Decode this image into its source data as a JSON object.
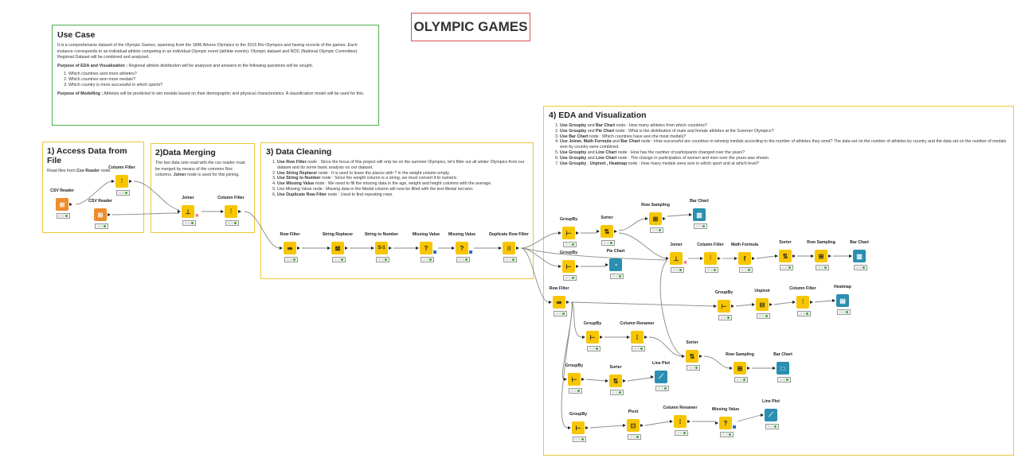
{
  "title": "OLYMPIC GAMES",
  "use_case": {
    "heading": "Use Case",
    "intro": "It is a comprehensive dataset of the Olympic Games, spanning from the 1896 Athens Olympics to the 2016 Rio Olympics and having records of the games. Each instance corresponds to an individual athlete competing in an individual Olympic event (athlete events). Olympic dataset and NOC (National Olympic Committee) Regional Dataset will be combined and analyzed.",
    "eda_label": "Purpose of EDA and Visualization :",
    "eda_text": "Regional athlete distribution will be analyzed and answers to the following questions will be sought.",
    "questions": [
      "Which countries sent more athletes?",
      "Which countries won more medals?",
      "Which country is more successful in which sports?"
    ],
    "model_label": "Purpose of Modelling :",
    "model_text": "Athletes will be predicted to win medals based on their demographic and physical characteristics. A classification model will be used for this."
  },
  "access": {
    "heading": "1) Access Data from File",
    "text_prefix": "Read files from ",
    "text_bold": "Csv Reader",
    "text_suffix": " node"
  },
  "merging": {
    "heading": "2)Data Merging",
    "text_a": "The two data sets read with the csv reader must be merged by means of the common Noc columns. ",
    "text_bold": "Joiner",
    "text_b": " node is used for this joining."
  },
  "cleaning": {
    "heading": "3) Data Cleaning",
    "items": [
      {
        "b": "Use Row Filter",
        "t": " node : Since the focus of this project will only be on the summer Olympics, let's filter out all winter Olympics from our dataset and do some basic analysis on our dataset."
      },
      {
        "b": "Use String Replacer",
        "t": " node : It is used to leave the places with ? in the weight column empty."
      },
      {
        "b": "Use String to Number",
        "t": " node : Since the weight column is a string, we must convert it to numeric."
      },
      {
        "b": "Use Missing Value",
        "t": " node : We need to fill the missing data in the age, weight and height columns with the average."
      },
      {
        "b": "",
        "t": "Use Missing Value node : Missing data in the Medal column will now be filled with the text  Medal not won."
      },
      {
        "b": "Use Duplicate Row Filter",
        "t": " node : Used to find repeating rows."
      }
    ]
  },
  "eda": {
    "heading": "4) EDA and Visualization",
    "items": [
      {
        "b": "Use Groupby",
        "m": " and ",
        "b2": "Bar Chart",
        "t": " node : How many athletes from which countries?"
      },
      {
        "b": "Use Groupby",
        "m": " and ",
        "b2": "Pie Chart",
        "t": " node : What is the distribution of male and female athletes at the Summer Olympics?"
      },
      {
        "b": "Use Bar Chart",
        "m": "",
        "b2": "",
        "t": " node : Which countries have won the most medals?"
      },
      {
        "b": "Use Joiner, Math Formula",
        "m": " and ",
        "b2": "Bar Chart",
        "t": " node : How successful are countries in winning medals according to the number of athletes they send? The data set on the number of athletes by country and the data set on the number of medals won by country were combined."
      },
      {
        "b": "Use Groupby",
        "m": " and ",
        "b2": "Line Chart",
        "t": " node : How has the number of participants changed over the years?"
      },
      {
        "b": "Use Groupby",
        "m": " and ",
        "b2": "Line Chart",
        "t": " node : The change in participation of women and men over the years was shown."
      },
      {
        "b": "Use Groupby",
        "m": " , ",
        "b2": "Unpivot , Heatmap",
        "t": " node : How many medals were won in which sport and at which level?"
      }
    ]
  },
  "nodes": {
    "csv1": "CSV Reader",
    "csv2": "CSV Reader",
    "colfilter1": "Column Filter",
    "joiner1": "Joiner",
    "colfilter2": "Column Filter",
    "rowfilter1": "Row Filter",
    "strrep": "String Replacer",
    "str2num": "String to Number",
    "missing1": "Missing Value",
    "missing2": "Missing Value",
    "duprow": "Duplicate Row Filter",
    "groupby1": "GroupBy",
    "sorter1": "Sorter",
    "rowsamp1": "Row Sampling",
    "barchart1": "Bar Chart",
    "groupby2": "GroupBy",
    "piechart": "Pie Chart",
    "joiner2": "Joiner",
    "colfilter3": "Column Filter",
    "mathformula": "Math Formula",
    "sorter2": "Sorter",
    "rowsamp2": "Row Sampling",
    "barchart2": "Bar Chart",
    "rowfilter2": "Row Filter",
    "groupby3": "GroupBy",
    "unpivot": "Unpivot",
    "colfilter4": "Column Filter",
    "heatmap": "Heatmap",
    "groupby4": "GroupBy",
    "colrenamer1": "Column Renamer",
    "sorter3": "Sorter",
    "rowsamp3": "Row Sampling",
    "barchart3": "Bar Chart",
    "groupby5": "GroupBy",
    "sorter4": "Sorter",
    "lineplot1": "Line Plot",
    "groupby6": "GroupBy",
    "pivot": "Pivot",
    "colrenamer2": "Column Renamer",
    "missing3": "Missing Value",
    "lineplot2": "Line Plot"
  },
  "colors": {
    "annotation_yellow": "#e8c93a",
    "annotation_green": "#4caf50",
    "title_red": "#d9534f",
    "node_yellow": "#f7c600",
    "node_orange": "#ef8b2c",
    "node_teal": "#2a8fb0"
  }
}
